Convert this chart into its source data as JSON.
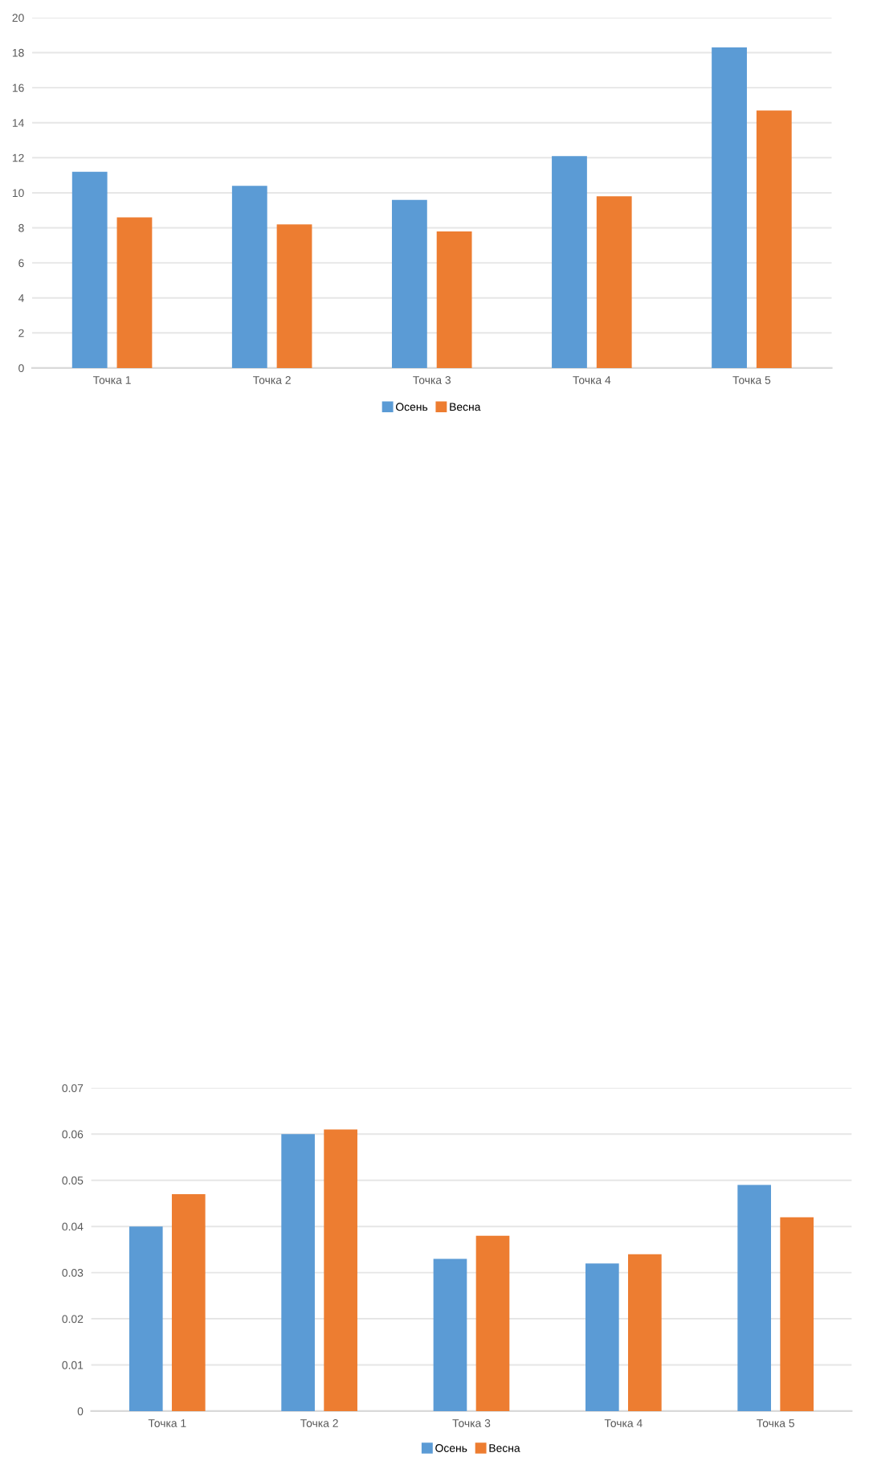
{
  "chart_data": [
    {
      "type": "bar",
      "categories": [
        "Точка 1",
        "Точка 2",
        "Точка 3",
        "Точка 4",
        "Точка 5"
      ],
      "series": [
        {
          "name": "Осень",
          "color": "#5b9bd5",
          "values": [
            11.2,
            10.4,
            9.6,
            12.1,
            18.3
          ]
        },
        {
          "name": "Весна",
          "color": "#ed7d31",
          "values": [
            8.6,
            8.2,
            7.8,
            9.8,
            14.7
          ]
        }
      ],
      "ylim": [
        0,
        20
      ],
      "yticks": [
        0,
        2,
        4,
        6,
        8,
        10,
        12,
        14,
        16,
        18,
        20
      ],
      "grid": "y",
      "legend": "bottom"
    },
    {
      "type": "bar",
      "categories": [
        "Точка 1",
        "Точка 2",
        "Точка 3",
        "Точка 4",
        "Точка 5"
      ],
      "series": [
        {
          "name": "Осень",
          "color": "#5b9bd5",
          "values": [
            0.04,
            0.06,
            0.033,
            0.032,
            0.049
          ]
        },
        {
          "name": "Весна",
          "color": "#ed7d31",
          "values": [
            0.047,
            0.061,
            0.038,
            0.034,
            0.042
          ]
        }
      ],
      "ylim": [
        0,
        0.07
      ],
      "yticks": [
        0,
        0.01,
        0.02,
        0.03,
        0.04,
        0.05,
        0.06,
        0.07
      ],
      "grid": "y",
      "legend": "bottom"
    }
  ]
}
